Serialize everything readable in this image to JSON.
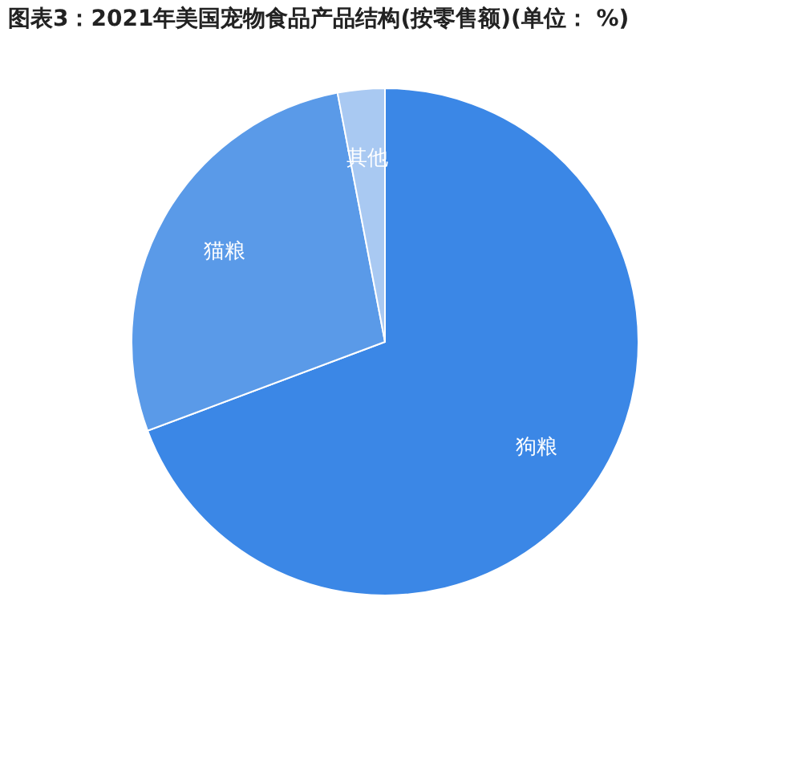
{
  "chart_data": {
    "type": "pie",
    "title": "图表3：2021年美国宠物食品产品结构(按零售额)(单位： %)",
    "categories": [
      "狗粮",
      "猫粮",
      "其他"
    ],
    "values": [
      69.3,
      27.7,
      3.0
    ],
    "colors": [
      "#3b87e6",
      "#5a9ae8",
      "#a9c9f2"
    ],
    "legend": false
  }
}
